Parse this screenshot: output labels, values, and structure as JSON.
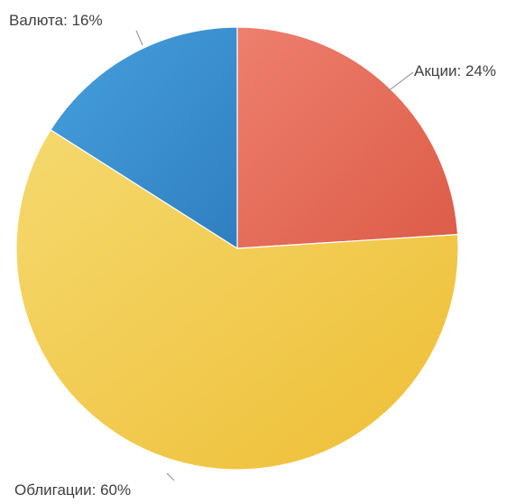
{
  "chart_data": {
    "type": "pie",
    "title": "",
    "slices": [
      {
        "label": "Акции",
        "value": 24,
        "label_text": "Акции: 24%",
        "color": "#E56B57"
      },
      {
        "label": "Облигации",
        "value": 60,
        "label_text": "Облигации: 60%",
        "color": "#F0C443"
      },
      {
        "label": "Валюта",
        "value": 16,
        "label_text": "Валюта: 16%",
        "color": "#3A8FCF"
      }
    ],
    "start_angle": "12 o'clock",
    "direction": "clockwise",
    "legend": "none",
    "labels": "outside with leader lines"
  }
}
